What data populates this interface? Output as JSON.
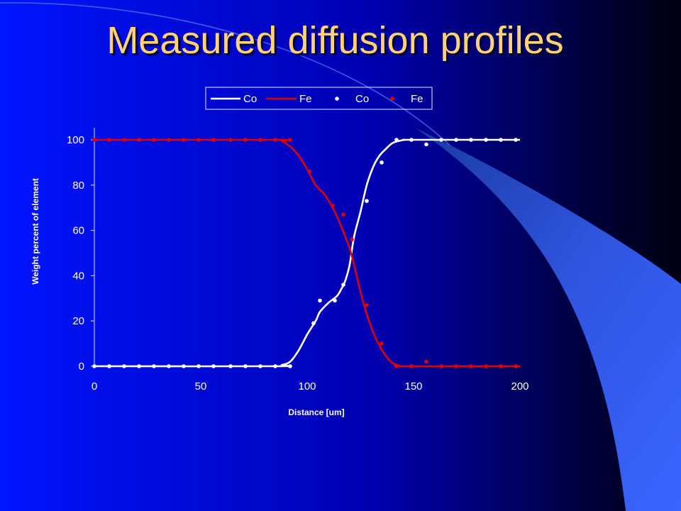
{
  "slide": {
    "title": "Measured diffusion profiles",
    "colors": {
      "background_left": "#0014ff",
      "background_right": "#000010",
      "title": "#ffd27a",
      "accent_swoosh": "#3a64ff"
    }
  },
  "chart_data": {
    "type": "scatter",
    "title": "",
    "xlabel": "Distance [um]",
    "ylabel": "Weight percent of element",
    "xlim": [
      0,
      200
    ],
    "ylim": [
      0,
      100
    ],
    "xticks": [
      0,
      50,
      100,
      150,
      200
    ],
    "yticks": [
      0,
      20,
      40,
      60,
      80,
      100
    ],
    "grid": false,
    "legend_position": "top",
    "legend": [
      {
        "label": "Co",
        "kind": "line",
        "color": "#ffffff"
      },
      {
        "label": "Fe",
        "kind": "line",
        "color": "#e00000"
      },
      {
        "label": "Co",
        "kind": "marker",
        "color": "#ffffff"
      },
      {
        "label": "Fe",
        "kind": "marker",
        "color": "#e00000"
      }
    ],
    "series": [
      {
        "name": "Co",
        "kind": "line",
        "color": "#ffffff",
        "x": [
          0,
          85,
          88,
          92,
          96,
          100,
          104,
          106,
          110,
          114,
          116,
          118,
          120,
          122,
          125,
          128,
          131,
          134,
          137,
          140,
          143,
          146,
          150,
          200
        ],
        "y": [
          0,
          0,
          0.5,
          2,
          7,
          14,
          20,
          24,
          28,
          31,
          34,
          38,
          45,
          57,
          68,
          80,
          88,
          93,
          96,
          98.5,
          99.5,
          100,
          100,
          100
        ]
      },
      {
        "name": "Fe",
        "kind": "line",
        "color": "#e00000",
        "x": [
          0,
          85,
          88,
          92,
          96,
          100,
          104,
          108,
          112,
          115,
          118,
          120,
          122,
          125,
          128,
          131,
          134,
          137,
          140,
          143,
          146,
          200
        ],
        "y": [
          100,
          100,
          99.5,
          97,
          93,
          87,
          80,
          76,
          70,
          64,
          57,
          52,
          45,
          33,
          23,
          15,
          9,
          4.5,
          1.5,
          0.3,
          0,
          0
        ]
      },
      {
        "name": "Co",
        "kind": "marker",
        "color": "#ffffff",
        "x": [
          0,
          7,
          14,
          21,
          28,
          35,
          42,
          49,
          56,
          64,
          71,
          78,
          85,
          92,
          103,
          106,
          113,
          117,
          128,
          135,
          142,
          149,
          156,
          163,
          170,
          177,
          184,
          191,
          198
        ],
        "y": [
          0,
          0,
          0,
          0,
          0,
          0,
          0,
          0,
          0,
          0,
          0,
          0,
          0,
          0,
          19,
          29,
          29,
          36,
          73,
          90,
          100,
          100,
          98,
          100,
          100,
          100,
          100,
          100,
          100
        ]
      },
      {
        "name": "Fe",
        "kind": "marker",
        "color": "#e00000",
        "x": [
          0,
          7,
          14,
          21,
          28,
          35,
          42,
          49,
          56,
          64,
          71,
          78,
          85,
          92,
          101,
          112,
          117,
          121,
          128,
          135,
          142,
          149,
          156,
          163,
          170,
          177,
          184,
          191,
          198
        ],
        "y": [
          100,
          100,
          100,
          100,
          100,
          100,
          100,
          100,
          100,
          100,
          100,
          100,
          100,
          100,
          86,
          71,
          67,
          56,
          27,
          10,
          0,
          0,
          2,
          0,
          0,
          0,
          0,
          0,
          0
        ]
      }
    ]
  }
}
